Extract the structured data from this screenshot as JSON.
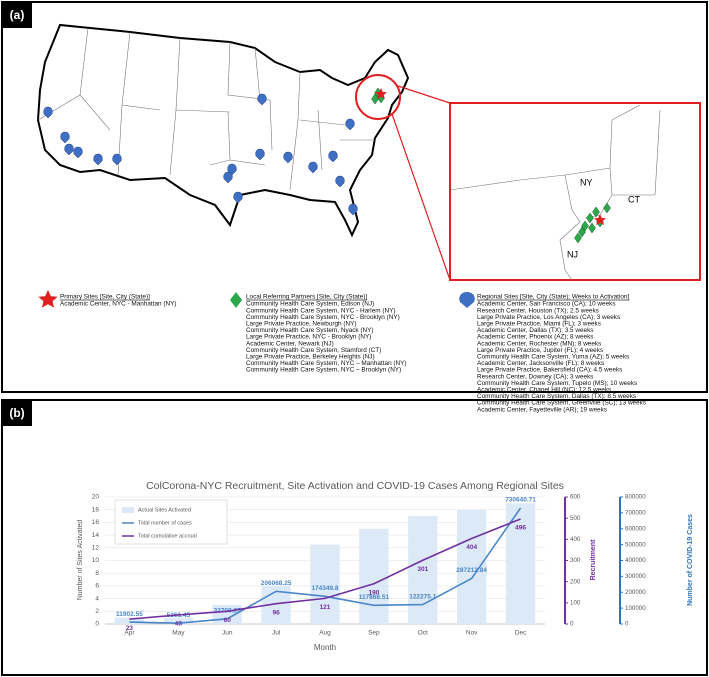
{
  "panel_a": {
    "label": "(a)",
    "map_labels": [
      "NY",
      "CT",
      "NJ"
    ],
    "legend": [
      {
        "title": "Primary Sites [Site, City (State)]",
        "items": [
          "Academic Center, NYC - Manhattan (NY)"
        ]
      },
      {
        "title": "Local Referring Partners [Site, City (State)]",
        "items": [
          "Community Health Care System, Edison (NJ)",
          "Community Health Care System, NYC - Harlem (NY)",
          "Community Health Care System, NYC - Brooklyn (NY)",
          "Large Private Practice, Newburgh (NY)",
          "Community Health Care System, Nyack (NY)",
          "Large Private Practice, NYC - Brooklyn (NY)",
          "Academic Center, Newark (NJ)",
          "Community Health Care System, Stamford (CT)",
          "Large Private Practice, Berkeley Heights (NJ)",
          "Community Health Care System, NYC – Manhattan (NY)",
          "Community Health Care System, NYC – Brooklyn (NY)"
        ]
      },
      {
        "title": "Regional Sites [Site, City (State); Weeks to Activation]",
        "items": [
          "Academic Center, San Francisco (CA); 10 weeks",
          "Research Center, Houston (TX); 2.5 weeks",
          "Large Private Practice, Los Angeles (CA); 3 weeks",
          "Large Private Practice, Miami (FL); 3 weeks",
          "Academic Center, Dallas (TX); 3.5 weeks",
          "Academic Center, Phoenix (AZ); 8 weeks",
          "Academic Center, Rochester (MN); 8 weeks",
          "Large Private Practice, Jupiter (FL); 4 weeks",
          "Community Health Care System, Yuma (AZ); 5 weeks",
          "Academic Center, Jacksonville (FL); 8 weeks",
          "Large Private Practice, Bakersfield (CA); 4.5 weeks",
          "Research Center, Downey (CA); 3 weeks",
          "Community Health Care System, Tupelo (MS); 10 weeks",
          "Academic Center, Chapel Hill (NC); 12.5 weeks",
          "Community Health Care System, Dallas (TX); 8.5 weeks",
          "Community Health Care System, Greenville (SC); 13 weeks",
          "Academic Center, Fayetteville (AR); 19 weeks"
        ]
      }
    ]
  },
  "panel_b": {
    "label": "(b)"
  },
  "chart_data": {
    "type": "bar-line",
    "title": "ColCorona-NYC Recruitment, Site Activation and COVID-19 Cases Among Regional Sites",
    "xlabel": "Month",
    "ylabel": "Number of Sites Activated",
    "y2label": "Recruitment",
    "y3label": "Number of COVID-19 Cases",
    "categories": [
      "Apr",
      "May",
      "Jun",
      "Jul",
      "Aug",
      "Sep",
      "Oct",
      "Nov",
      "Dec"
    ],
    "series": [
      {
        "name": "Actual Sites Activated",
        "kind": "bar",
        "color": "#dce9f6",
        "values": [
          1,
          1,
          3,
          6,
          12.5,
          15,
          17,
          18,
          19
        ]
      },
      {
        "name": "Total number of cases",
        "kind": "line",
        "axis": "y3",
        "color": "#4a86c8",
        "values": [
          11902.55,
          5361.45,
          32700.25,
          206068.25,
          174349.8,
          117868.51,
          122275.1,
          287212.84,
          730640.71
        ]
      },
      {
        "name": "Total cumulative accrual",
        "kind": "line",
        "axis": "y2",
        "color": "#7030a0",
        "values": [
          23,
          43,
          60,
          96,
          121,
          190,
          301,
          404,
          496
        ]
      }
    ],
    "ylim": [
      0,
      20
    ],
    "yticks": [
      0,
      2,
      4,
      6,
      8,
      10,
      12,
      14,
      16,
      18,
      20
    ],
    "y2lim": [
      0,
      600
    ],
    "y2ticks": [
      0,
      100,
      200,
      300,
      400,
      500,
      600
    ],
    "y3lim": [
      0,
      800000
    ],
    "y3ticks": [
      0,
      100000,
      200000,
      300000,
      400000,
      500000,
      600000,
      700000,
      800000
    ]
  }
}
